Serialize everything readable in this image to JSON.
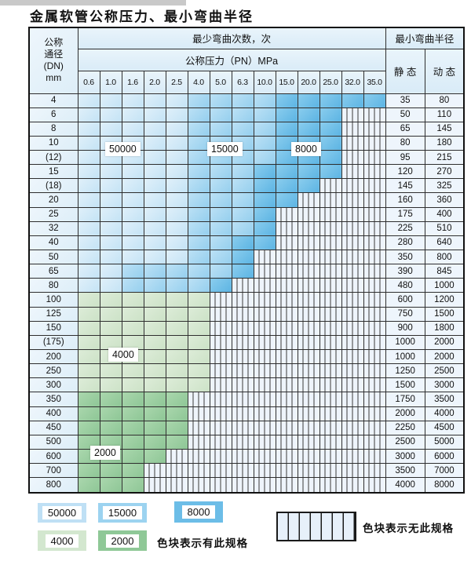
{
  "title": "金属软管公称压力、最小弯曲半径",
  "table": {
    "header": {
      "dn_lines": [
        "公称",
        "通径",
        "(DN)",
        "mm"
      ],
      "cycles_label": "最少弯曲次数，次",
      "pressure_label": "公称压力（PN）MPa",
      "radius_label": "最小弯曲半径",
      "static_label": "静 态",
      "dynamic_label": "动 态",
      "pressures": [
        "0.6",
        "1.0",
        "1.6",
        "2.0",
        "2.5",
        "4.0",
        "5.0",
        "6.3",
        "10.0",
        "15.0",
        "20.0",
        "25.0",
        "32.0",
        "35.0"
      ]
    },
    "zone_cycles": {
      "L": 50000,
      "M": 15000,
      "D": 8000,
      "g": 4000,
      "G": 2000,
      "x": null
    },
    "rows": [
      {
        "dn": "4",
        "static": "35",
        "dynamic": "80",
        "zones": "LLLLLMMMMDDDDD"
      },
      {
        "dn": "6",
        "static": "50",
        "dynamic": "110",
        "zones": "LLLLLMMMMDDDxx"
      },
      {
        "dn": "8",
        "static": "65",
        "dynamic": "145",
        "zones": "LLLLLMMMMDDDxx"
      },
      {
        "dn": "10",
        "static": "80",
        "dynamic": "180",
        "zones": "LLLLLMMMMDDDxx"
      },
      {
        "dn": "(12)",
        "static": "95",
        "dynamic": "215",
        "zones": "LLLLLMMMMDDDxx"
      },
      {
        "dn": "15",
        "static": "120",
        "dynamic": "270",
        "zones": "LLLLLMMMDDDDxx"
      },
      {
        "dn": "(18)",
        "static": "145",
        "dynamic": "325",
        "zones": "LLLLLMMMDDDxxx"
      },
      {
        "dn": "20",
        "static": "160",
        "dynamic": "360",
        "zones": "LLLLLMMMDDxxxx"
      },
      {
        "dn": "25",
        "static": "175",
        "dynamic": "400",
        "zones": "LLLLLMMMDxxxxx"
      },
      {
        "dn": "32",
        "static": "225",
        "dynamic": "510",
        "zones": "LLLLLMMMDxxxxx"
      },
      {
        "dn": "40",
        "static": "280",
        "dynamic": "640",
        "zones": "LLLLLMMDDxxxxx"
      },
      {
        "dn": "50",
        "static": "350",
        "dynamic": "800",
        "zones": "LLLLLMMDxxxxxx"
      },
      {
        "dn": "65",
        "static": "390",
        "dynamic": "845",
        "zones": "LLMMMMMDxxxxxx"
      },
      {
        "dn": "80",
        "static": "480",
        "dynamic": "1000",
        "zones": "LLMMMMDxxxxxxx"
      },
      {
        "dn": "100",
        "static": "600",
        "dynamic": "1200",
        "zones": "ggggggxxxxxxxx"
      },
      {
        "dn": "125",
        "static": "750",
        "dynamic": "1500",
        "zones": "ggggggxxxxxxxx"
      },
      {
        "dn": "150",
        "static": "900",
        "dynamic": "1800",
        "zones": "ggggggxxxxxxxx"
      },
      {
        "dn": "(175)",
        "static": "1000",
        "dynamic": "2000",
        "zones": "ggggggxxxxxxxx"
      },
      {
        "dn": "200",
        "static": "1000",
        "dynamic": "2000",
        "zones": "ggggggxxxxxxxx"
      },
      {
        "dn": "250",
        "static": "1250",
        "dynamic": "2500",
        "zones": "ggggggxxxxxxxx"
      },
      {
        "dn": "300",
        "static": "1500",
        "dynamic": "3000",
        "zones": "ggggggxxxxxxxx"
      },
      {
        "dn": "350",
        "static": "1750",
        "dynamic": "3500",
        "zones": "GGGGGxxxxxxxxx"
      },
      {
        "dn": "400",
        "static": "2000",
        "dynamic": "4000",
        "zones": "GGGGGxxxxxxxxx"
      },
      {
        "dn": "450",
        "static": "2250",
        "dynamic": "4500",
        "zones": "GGGGGxxxxxxxxx"
      },
      {
        "dn": "500",
        "static": "2500",
        "dynamic": "5000",
        "zones": "GGGGGxxxxxxxxx"
      },
      {
        "dn": "600",
        "static": "3000",
        "dynamic": "6000",
        "zones": "GGGGxxxxxxxxxx"
      },
      {
        "dn": "700",
        "static": "3500",
        "dynamic": "7000",
        "zones": "GGGxxxxxxxxxxx"
      },
      {
        "dn": "800",
        "static": "4000",
        "dynamic": "8000",
        "zones": "GGGxxxxxxxxxxx"
      }
    ],
    "overlay_labels": [
      {
        "text": "50000"
      },
      {
        "text": "15000"
      },
      {
        "text": "8000"
      },
      {
        "text": "4000"
      },
      {
        "text": "2000"
      }
    ]
  },
  "legend": {
    "items": [
      {
        "label": "50000",
        "color": "#bfe0f5"
      },
      {
        "label": "15000",
        "color": "#9cd3f0"
      },
      {
        "label": "8000",
        "color": "#6cbde7"
      },
      {
        "label": "4000",
        "color": "#d3e7cf"
      },
      {
        "label": "2000",
        "color": "#8fc897"
      }
    ],
    "has_spec_note": "色块表示有此规格",
    "no_spec_note": "色块表示无此规格"
  }
}
